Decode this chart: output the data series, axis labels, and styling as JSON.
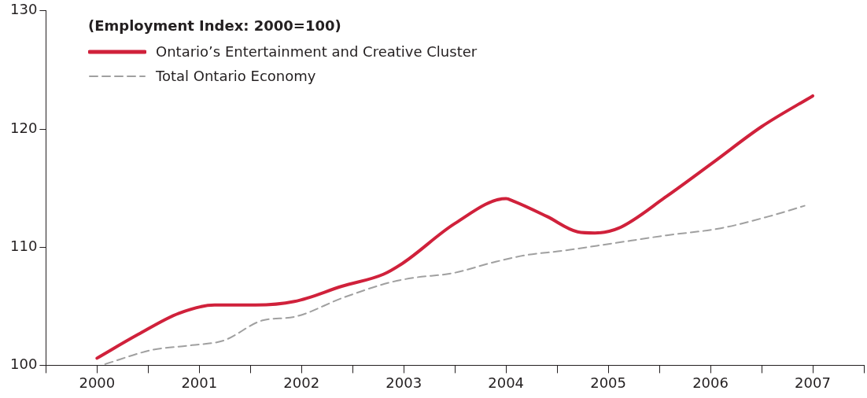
{
  "chart_data": {
    "type": "line",
    "legend_title": "(Employment Index: 2000=100)",
    "legend": "top left",
    "grid": false,
    "marker": "none",
    "xlim": [
      1999.5,
      2007.5
    ],
    "xticks": [
      {
        "value": 1999.5,
        "label": null
      },
      {
        "value": 2000,
        "label": "2000"
      },
      {
        "value": 2000.5,
        "label": null
      },
      {
        "value": 2001,
        "label": "2001"
      },
      {
        "value": 2001.5,
        "label": null
      },
      {
        "value": 2002,
        "label": "2002"
      },
      {
        "value": 2002.5,
        "label": null
      },
      {
        "value": 2003,
        "label": "2003"
      },
      {
        "value": 2003.5,
        "label": null
      },
      {
        "value": 2004,
        "label": "2004"
      },
      {
        "value": 2004.5,
        "label": null
      },
      {
        "value": 2005,
        "label": "2005"
      },
      {
        "value": 2005.5,
        "label": null
      },
      {
        "value": 2006,
        "label": "2006"
      },
      {
        "value": 2006.5,
        "label": null
      },
      {
        "value": 2007,
        "label": "2007"
      },
      {
        "value": 2007.5,
        "label": null
      }
    ],
    "ylim": [
      100,
      130
    ],
    "yticks": [
      100,
      110,
      120,
      130
    ],
    "series": [
      {
        "name": "Ontario’s Entertainment and Creative Cluster",
        "color": "#d0213b",
        "line_style": "solid",
        "x": [
          2000,
          2000.4,
          2000.8,
          2001.15,
          2001.55,
          2001.93,
          2002.4,
          2002.8,
          2003,
          2003.5,
          2004,
          2004.07,
          2004.4,
          2004.7,
          2004.87,
          2005.1,
          2005.57,
          2006.03,
          2006.5,
          2007
        ],
        "values": [
          100.6,
          102.6,
          104.4,
          105.1,
          105.1,
          105.4,
          106.7,
          107.7,
          108.7,
          112,
          114.1,
          113.9,
          112.6,
          111.3,
          111.2,
          111.6,
          114.3,
          117.2,
          120.2,
          122.8
        ]
      },
      {
        "name": "Total Ontario Economy",
        "color": "#a0a0a0",
        "line_style": "dashed",
        "x": [
          2000.08,
          2000.54,
          2000.93,
          2001.24,
          2001.62,
          2001.93,
          2002.4,
          2002.86,
          2003.09,
          2003.48,
          2003.87,
          2004.18,
          2004.56,
          2005.03,
          2005.57,
          2006.1,
          2006.57,
          2006.92
        ],
        "values": [
          100.1,
          101.3,
          101.7,
          102.1,
          103.8,
          104.1,
          105.7,
          107,
          107.4,
          107.8,
          108.7,
          109.3,
          109.7,
          110.3,
          111,
          111.6,
          112.6,
          113.5
        ]
      }
    ]
  }
}
